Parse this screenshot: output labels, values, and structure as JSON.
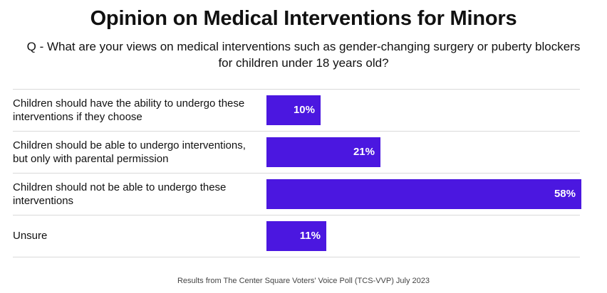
{
  "chart_data": {
    "type": "bar",
    "orientation": "horizontal",
    "title": "Opinion on Medical Interventions for Minors",
    "subtitle": "Q - What are your views on medical interventions such as gender-changing surgery or puberty blockers for children under 18 years old?",
    "categories": [
      "Children should have the ability to undergo these interventions if they choose",
      "Children should be able to undergo  interventions, but only with parental permission",
      "Children should not be able to undergo these interventions",
      "Unsure"
    ],
    "values": [
      10,
      21,
      58,
      11
    ],
    "value_labels": [
      "10%",
      "21%",
      "58%",
      "11%"
    ],
    "xlim": [
      0,
      58
    ],
    "bar_color": "#4b17e0",
    "source": "Results from The Center Square Voters' Voice Poll (TCS-VVP) July 2023"
  }
}
